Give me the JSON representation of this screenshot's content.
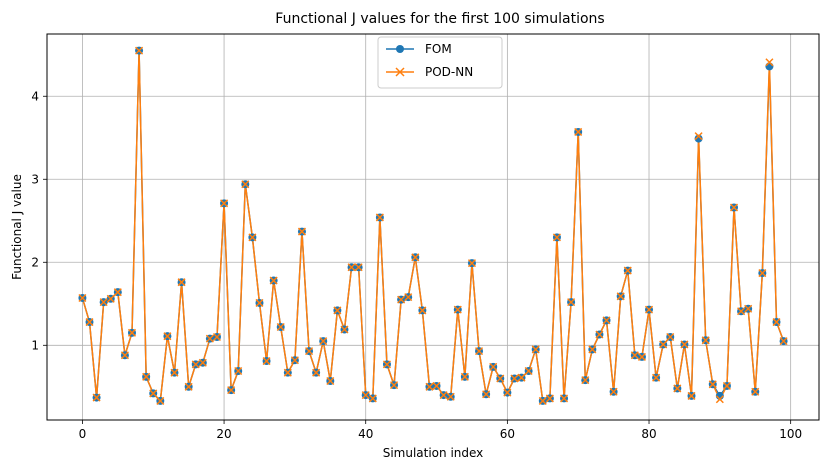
{
  "chart_data": {
    "type": "line",
    "title": "Functional J values for the first 100 simulations",
    "xlabel": "Simulation index",
    "ylabel": "Functional J value",
    "xlim": [
      -5,
      104
    ],
    "ylim": [
      0.1,
      4.75
    ],
    "xticks": [
      0,
      20,
      40,
      60,
      80,
      100
    ],
    "yticks": [
      1,
      2,
      3,
      4
    ],
    "grid": true,
    "legend_position": "top-center",
    "series": [
      {
        "name": "FOM",
        "color": "#1f77b4",
        "marker": "circle",
        "values": [
          1.57,
          1.28,
          0.37,
          1.52,
          1.56,
          1.64,
          0.88,
          1.15,
          4.55,
          0.62,
          0.42,
          0.33,
          1.11,
          0.67,
          1.76,
          0.5,
          0.77,
          0.79,
          1.08,
          1.1,
          2.71,
          0.46,
          0.69,
          2.94,
          2.3,
          1.51,
          0.81,
          1.78,
          1.22,
          0.67,
          0.82,
          2.37,
          0.93,
          0.67,
          1.05,
          0.57,
          1.42,
          1.19,
          1.94,
          1.94,
          0.4,
          0.36,
          2.54,
          0.77,
          0.52,
          1.55,
          1.58,
          2.06,
          1.42,
          0.5,
          0.51,
          0.4,
          0.38,
          1.43,
          0.62,
          1.99,
          0.93,
          0.41,
          0.74,
          0.6,
          0.43,
          0.6,
          0.61,
          0.69,
          0.95,
          0.33,
          0.36,
          2.3,
          0.36,
          1.52,
          3.57,
          0.58,
          0.95,
          1.13,
          1.3,
          0.44,
          1.59,
          1.9,
          0.88,
          0.86,
          1.43,
          0.61,
          1.01,
          1.1,
          0.48,
          1.01,
          0.39,
          3.49,
          1.06,
          0.53,
          0.39,
          0.51,
          2.66,
          1.41,
          1.44,
          0.44,
          1.87,
          4.36,
          1.28,
          1.05
        ]
      },
      {
        "name": "POD-NN",
        "color": "#ff7f0e",
        "marker": "x",
        "values": [
          1.57,
          1.28,
          0.37,
          1.52,
          1.56,
          1.64,
          0.88,
          1.15,
          4.55,
          0.62,
          0.42,
          0.33,
          1.11,
          0.67,
          1.76,
          0.5,
          0.77,
          0.79,
          1.08,
          1.1,
          2.71,
          0.46,
          0.69,
          2.94,
          2.3,
          1.51,
          0.81,
          1.78,
          1.22,
          0.67,
          0.82,
          2.37,
          0.93,
          0.67,
          1.05,
          0.57,
          1.42,
          1.19,
          1.94,
          1.94,
          0.4,
          0.36,
          2.54,
          0.77,
          0.52,
          1.55,
          1.58,
          2.06,
          1.42,
          0.5,
          0.51,
          0.4,
          0.38,
          1.43,
          0.62,
          1.99,
          0.93,
          0.41,
          0.74,
          0.6,
          0.43,
          0.6,
          0.61,
          0.69,
          0.95,
          0.33,
          0.36,
          2.3,
          0.36,
          1.52,
          3.57,
          0.58,
          0.95,
          1.13,
          1.3,
          0.44,
          1.59,
          1.9,
          0.88,
          0.86,
          1.43,
          0.61,
          1.01,
          1.1,
          0.48,
          1.01,
          0.39,
          3.52,
          1.06,
          0.53,
          0.35,
          0.51,
          2.66,
          1.41,
          1.44,
          0.44,
          1.87,
          4.41,
          1.28,
          1.05
        ]
      }
    ]
  }
}
